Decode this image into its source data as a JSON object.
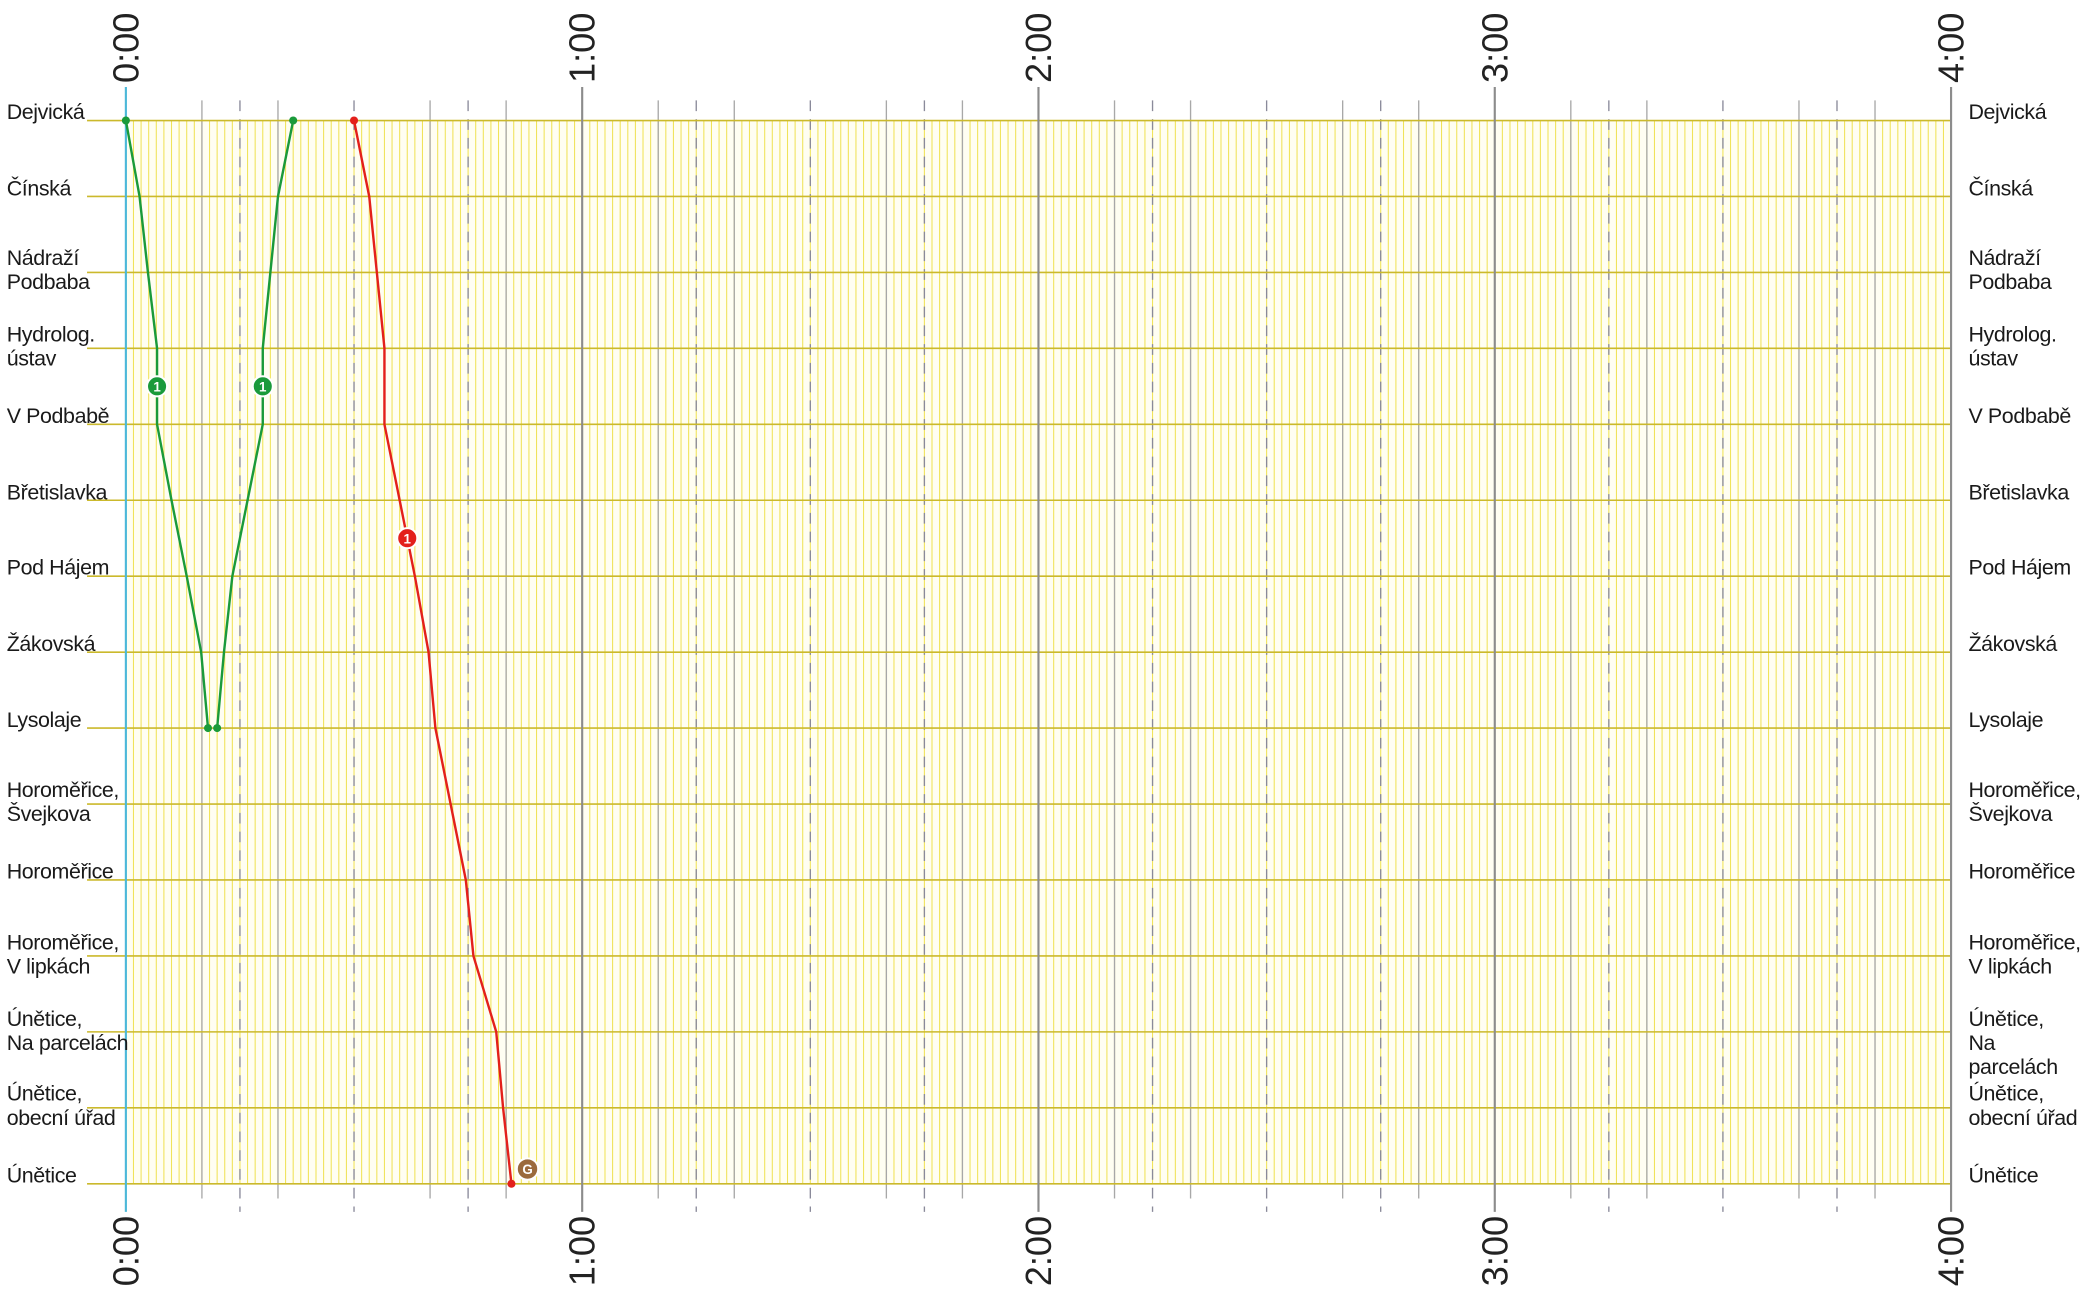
{
  "chart_data": {
    "type": "line",
    "categories": [
      "Dejvická",
      "Čínská",
      "Nádraží\nPodbaba",
      "Hydrolog.\nústav",
      "V Podbabě",
      "Břetislavka",
      "Pod Hájem",
      "Žákovská",
      "Lysolaje",
      "Horoměřice,\nŠvejkova",
      "Horoměřice",
      "Horoměřice,\nV lipkách",
      "Únětice,\nNa parcelách",
      "Únětice,\nobecní úřad",
      "Únětice"
    ],
    "xlim": [
      0,
      240
    ],
    "xticks": [
      {
        "value": 0,
        "label": "0:00"
      },
      {
        "value": 60,
        "label": "1:00"
      },
      {
        "value": 120,
        "label": "2:00"
      },
      {
        "value": 180,
        "label": "3:00"
      },
      {
        "value": 240,
        "label": "4:00"
      }
    ],
    "grid": true,
    "series": [
      {
        "name": "1",
        "color": "#1a9a3a",
        "values": [
          0,
          1.8,
          2.9,
          4.1,
          4.1,
          6,
          8,
          9.9,
          10.8,
          null,
          null,
          null,
          null,
          null,
          null
        ]
      },
      {
        "name": "1",
        "color": "#1a9a3a",
        "values": [
          22,
          20,
          19,
          18,
          18,
          16,
          14,
          12.9,
          12,
          null,
          null,
          null,
          null,
          null,
          null
        ]
      },
      {
        "name": "1",
        "color": "#e3201b",
        "values": [
          30,
          32,
          33,
          34,
          34,
          36,
          38,
          39.8,
          40.7,
          42.7,
          44.7,
          45.7,
          48.7,
          49.6,
          50.7
        ],
        "end_badge": "G"
      }
    ]
  }
}
